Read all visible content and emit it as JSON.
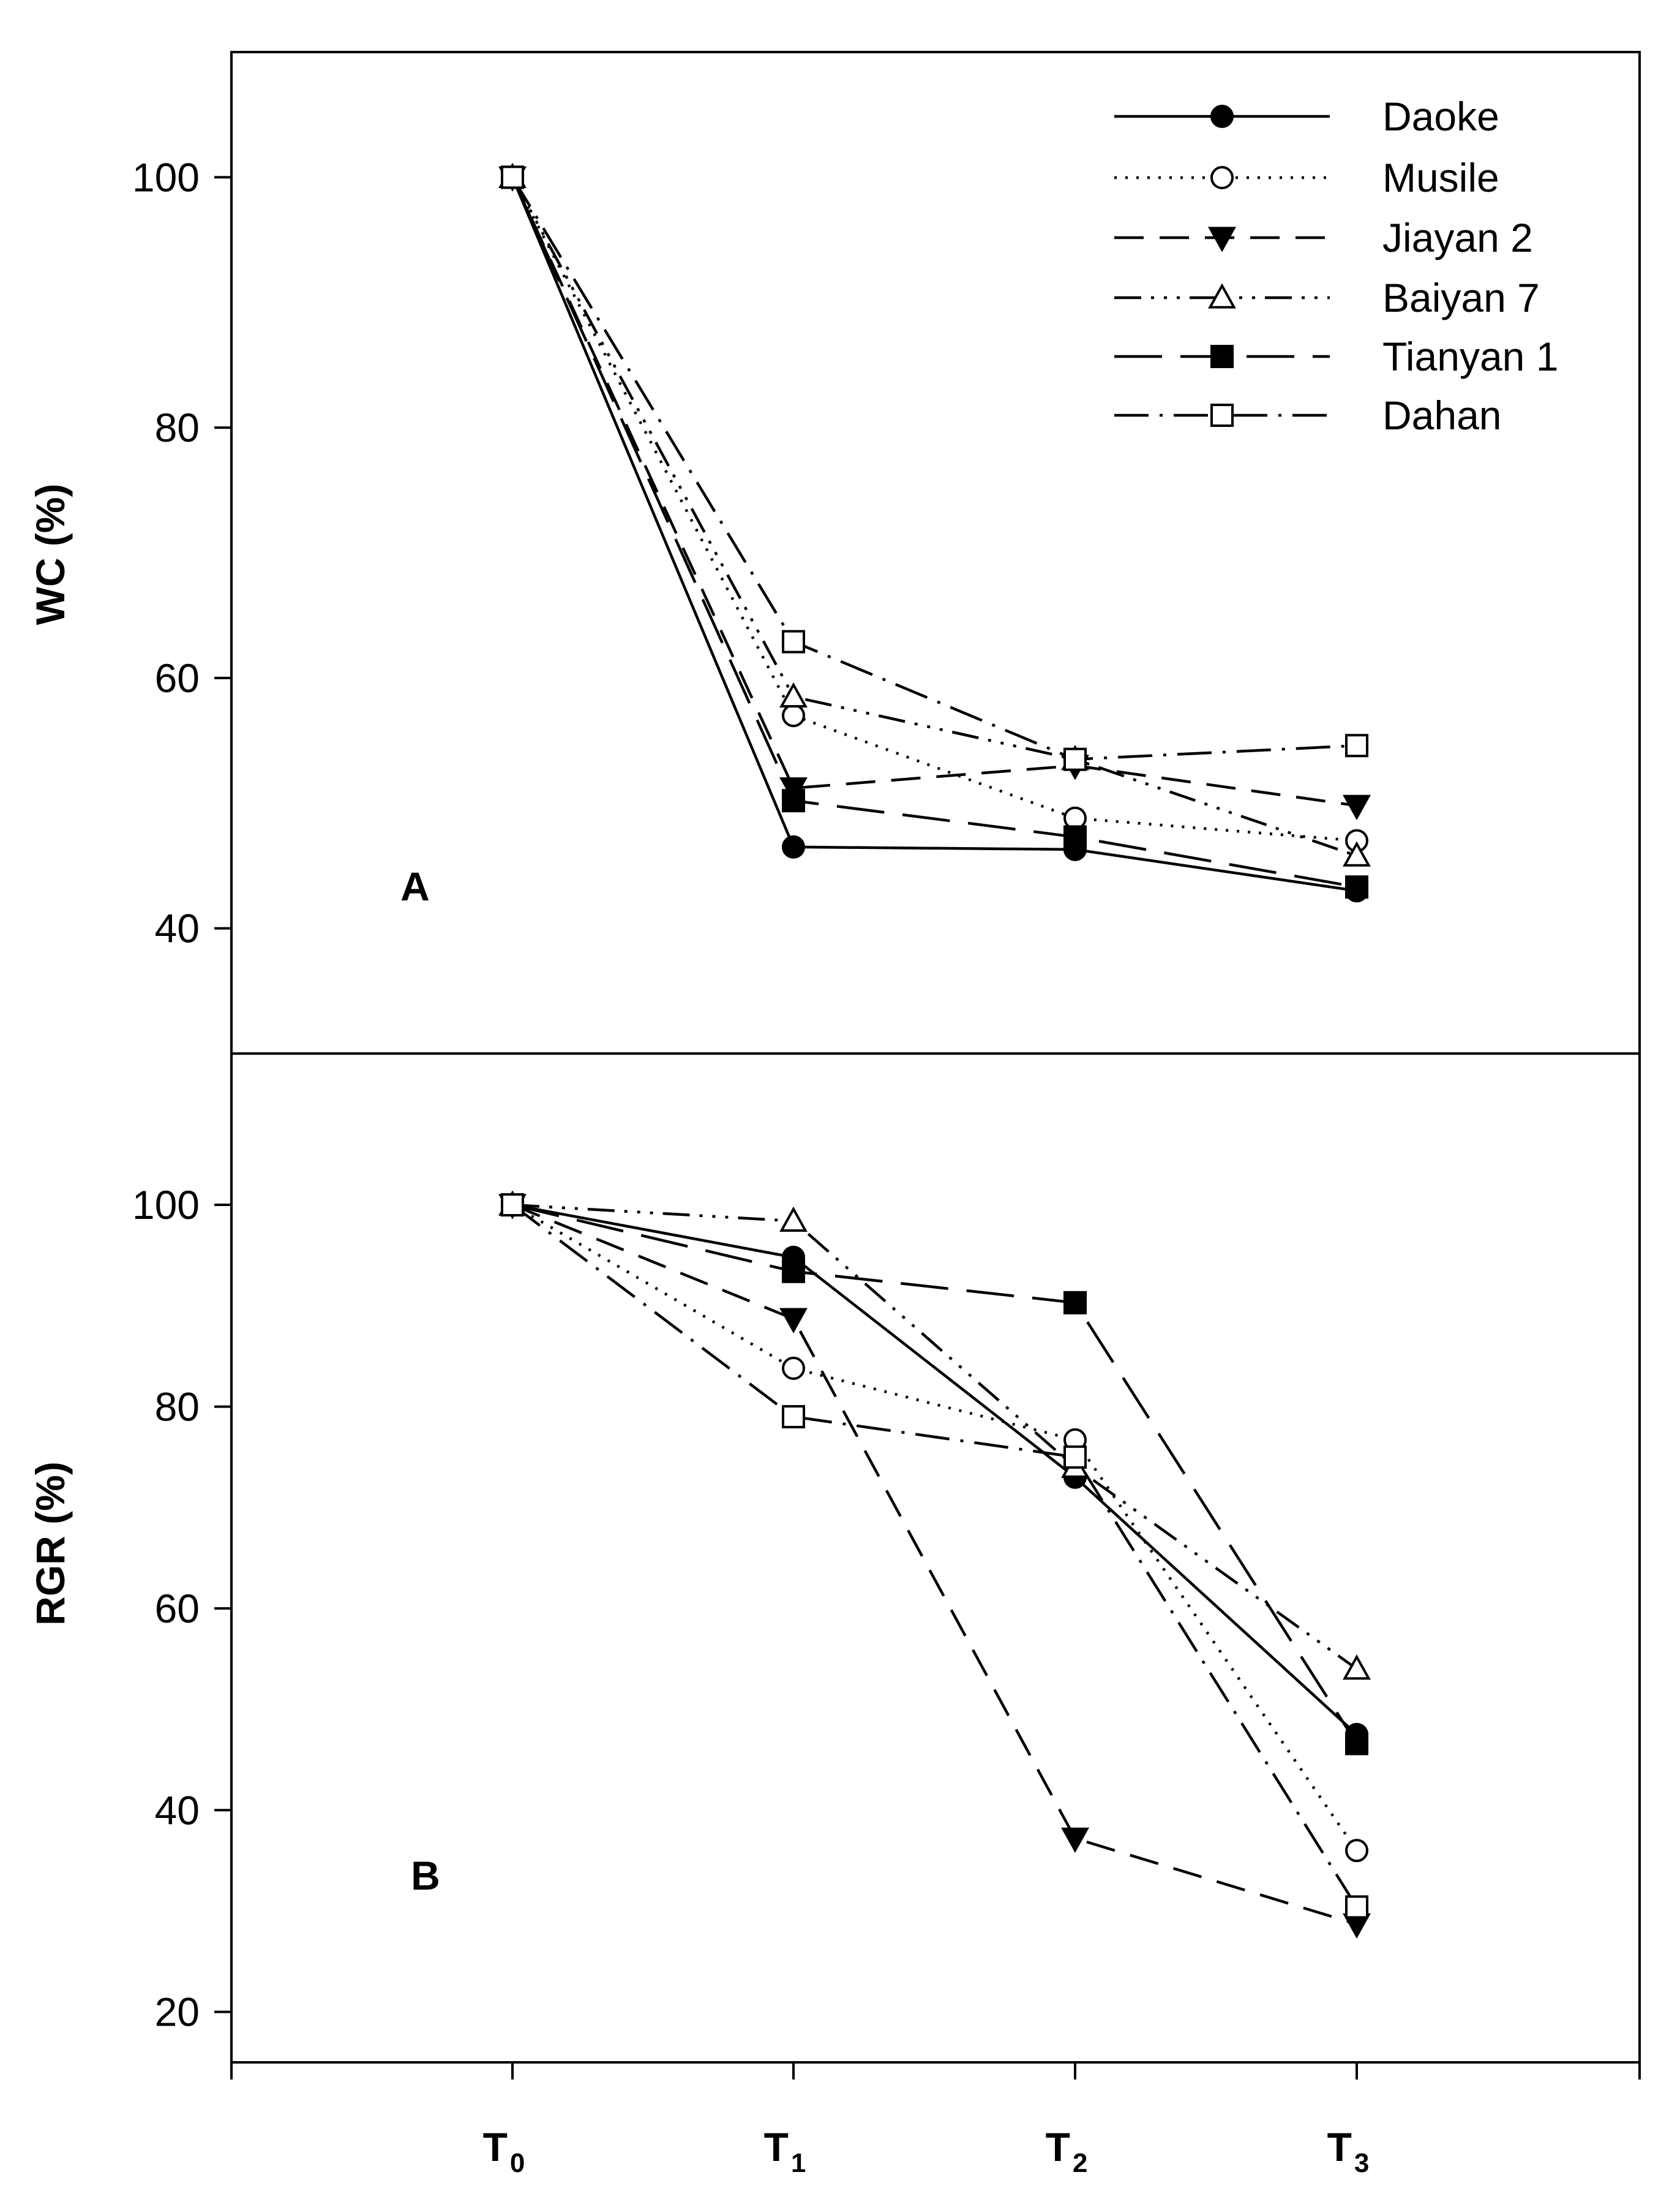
{
  "chart_data": [
    {
      "type": "line",
      "panel_label": "A",
      "ylabel": "WC (%)",
      "ylim": [
        30,
        110
      ],
      "yticks": [
        40,
        60,
        80,
        100
      ],
      "categories": [
        "T0",
        "T1",
        "T2",
        "T3"
      ],
      "legend_position": "top-right",
      "series": [
        {
          "name": "Daoke",
          "values": [
            100,
            46.5,
            46.3,
            43.0
          ]
        },
        {
          "name": "Musile",
          "values": [
            100,
            57.0,
            48.8,
            47.0
          ]
        },
        {
          "name": "Jiayan 2",
          "values": [
            100,
            51.2,
            53.0,
            49.8
          ]
        },
        {
          "name": "Baiyan 7",
          "values": [
            100,
            58.5,
            53.5,
            45.8
          ]
        },
        {
          "name": "Tianyan 1",
          "values": [
            100,
            50.2,
            47.3,
            43.3
          ]
        },
        {
          "name": "Dahan",
          "values": [
            100,
            62.9,
            53.5,
            54.6
          ]
        }
      ]
    },
    {
      "type": "line",
      "panel_label": "B",
      "ylabel": "RGR (%)",
      "ylim": [
        15,
        115
      ],
      "yticks": [
        20,
        40,
        60,
        80,
        100
      ],
      "categories": [
        "T0",
        "T1",
        "T2",
        "T3"
      ],
      "series": [
        {
          "name": "Daoke",
          "values": [
            100,
            94.8,
            73.0,
            47.5
          ]
        },
        {
          "name": "Musile",
          "values": [
            100,
            83.8,
            76.7,
            36.0
          ]
        },
        {
          "name": "Jiayan 2",
          "values": [
            100,
            88.7,
            37.2,
            28.7
          ]
        },
        {
          "name": "Baiyan 7",
          "values": [
            100,
            98.4,
            74.0,
            54.0
          ]
        },
        {
          "name": "Tianyan 1",
          "values": [
            100,
            93.4,
            90.3,
            46.6
          ]
        },
        {
          "name": "Dahan",
          "values": [
            100,
            79.0,
            75.0,
            30.4
          ]
        }
      ]
    }
  ],
  "x_categories": [
    {
      "main": "T",
      "sub": "0"
    },
    {
      "main": "T",
      "sub": "1"
    },
    {
      "main": "T",
      "sub": "2"
    },
    {
      "main": "T",
      "sub": "3"
    }
  ],
  "styles": {
    "Daoke": {
      "marker": "circle",
      "fill": "#000000",
      "dash": ""
    },
    "Musile": {
      "marker": "circle",
      "fill": "#ffffff",
      "dash": "4,14"
    },
    "Jiayan 2": {
      "marker": "tri-down",
      "fill": "#000000",
      "dash": "48,26"
    },
    "Baiyan 7": {
      "marker": "tri-up",
      "fill": "#ffffff",
      "dash": "44,16,5,16,5,16,5,16"
    },
    "Tianyan 1": {
      "marker": "square",
      "fill": "#000000",
      "dash": "78,30"
    },
    "Dahan": {
      "marker": "square",
      "fill": "#ffffff",
      "dash": "56,18,5,18"
    }
  }
}
